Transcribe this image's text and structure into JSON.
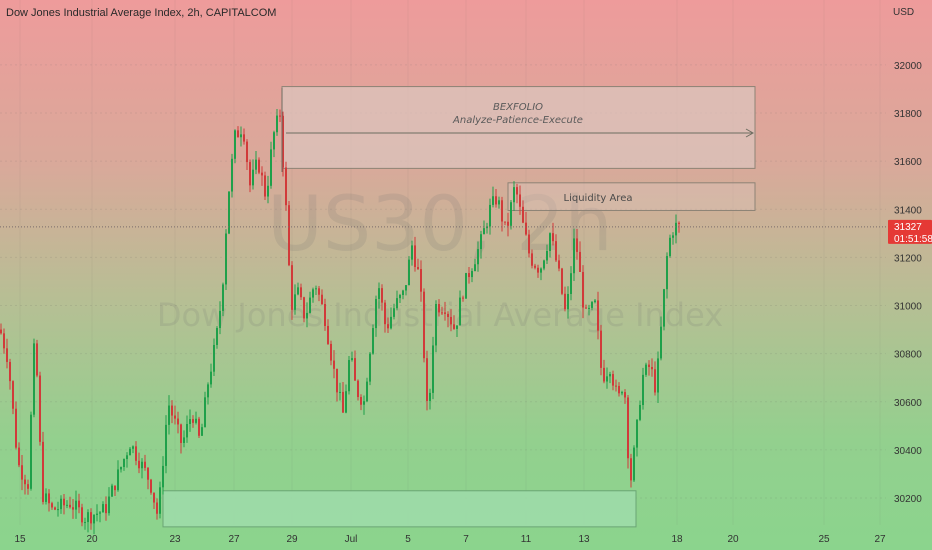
{
  "header": {
    "title": "Dow Jones Industrial Average Index, 2h, CAPITALCOM"
  },
  "watermark": {
    "symbol": "US30, 2h",
    "name": "Dow Jones Industrial Average Index"
  },
  "colors": {
    "up": "#1fa04a",
    "down": "#d13a3a",
    "price_tag": "#e53935",
    "zone_top_fill": "#dcc6bf",
    "zone_bottom_fill": "#9fdcaa"
  },
  "annotations": {
    "bexfolio_title": "BEXFOLIO",
    "bexfolio_subtitle": "Analyze-Patience-Execute",
    "liquidity_label": "Liquidity Area"
  },
  "price_tag": {
    "price": "31327",
    "countdown": "01:51:58"
  },
  "chart_data": {
    "type": "candlestick",
    "title": "Dow Jones Industrial Average Index, 2h, CAPITALCOM",
    "y_unit": "USD",
    "ylim": [
      30080,
      32300
    ],
    "y_ticks": [
      30200,
      30400,
      30600,
      30800,
      31000,
      31200,
      31400,
      31600,
      31800,
      32000
    ],
    "x_ticks": [
      "15",
      "20",
      "23",
      "27",
      "29",
      "Jul",
      "5",
      "7",
      "11",
      "13",
      "18",
      "20",
      "25",
      "27"
    ],
    "last_price": 31327,
    "zones": [
      {
        "label": "BEXFOLIO",
        "x_from": "28",
        "x_to": "19",
        "y_from": 31570,
        "y_to": 31910
      },
      {
        "label": "Liquidity Area",
        "x_from": "10",
        "x_to": "19",
        "y_from": 31395,
        "y_to": 31510
      },
      {
        "label": "",
        "x_from": "23",
        "x_to": "15",
        "y_from": 30080,
        "y_to": 30230
      }
    ],
    "path": [
      [
        0,
        30900
      ],
      [
        8,
        30780
      ],
      [
        18,
        30340
      ],
      [
        28,
        30260
      ],
      [
        35,
        30900
      ],
      [
        42,
        30220
      ],
      [
        52,
        30150
      ],
      [
        70,
        30180
      ],
      [
        85,
        30120
      ],
      [
        105,
        30150
      ],
      [
        130,
        30430
      ],
      [
        150,
        30270
      ],
      [
        158,
        30120
      ],
      [
        168,
        30600
      ],
      [
        182,
        30420
      ],
      [
        192,
        30560
      ],
      [
        200,
        30430
      ],
      [
        208,
        30680
      ],
      [
        216,
        30850
      ],
      [
        222,
        31050
      ],
      [
        228,
        31450
      ],
      [
        235,
        31700
      ],
      [
        243,
        31750
      ],
      [
        250,
        31500
      ],
      [
        258,
        31600
      ],
      [
        266,
        31450
      ],
      [
        273,
        31700
      ],
      [
        280,
        31800
      ],
      [
        286,
        31400
      ],
      [
        291,
        31000
      ],
      [
        298,
        31050
      ],
      [
        305,
        30950
      ],
      [
        315,
        31100
      ],
      [
        325,
        30950
      ],
      [
        335,
        30700
      ],
      [
        343,
        30550
      ],
      [
        350,
        30800
      ],
      [
        356,
        30650
      ],
      [
        364,
        30600
      ],
      [
        372,
        30900
      ],
      [
        378,
        31100
      ],
      [
        386,
        30900
      ],
      [
        395,
        31000
      ],
      [
        404,
        31050
      ],
      [
        412,
        31250
      ],
      [
        420,
        31100
      ],
      [
        428,
        30500
      ],
      [
        435,
        31000
      ],
      [
        445,
        31000
      ],
      [
        455,
        30900
      ],
      [
        462,
        31050
      ],
      [
        470,
        31150
      ],
      [
        480,
        31250
      ],
      [
        490,
        31400
      ],
      [
        497,
        31450
      ],
      [
        506,
        31300
      ],
      [
        515,
        31500
      ],
      [
        522,
        31350
      ],
      [
        530,
        31200
      ],
      [
        540,
        31150
      ],
      [
        550,
        31300
      ],
      [
        558,
        31150
      ],
      [
        566,
        30950
      ],
      [
        575,
        31300
      ],
      [
        585,
        30950
      ],
      [
        595,
        31000
      ],
      [
        602,
        30700
      ],
      [
        610,
        30750
      ],
      [
        618,
        30600
      ],
      [
        624,
        30700
      ],
      [
        630,
        30250
      ],
      [
        636,
        30450
      ],
      [
        642,
        30700
      ],
      [
        650,
        30750
      ],
      [
        656,
        30650
      ],
      [
        662,
        30950
      ],
      [
        668,
        31250
      ],
      [
        674,
        31330
      ],
      [
        680,
        31327
      ]
    ]
  }
}
